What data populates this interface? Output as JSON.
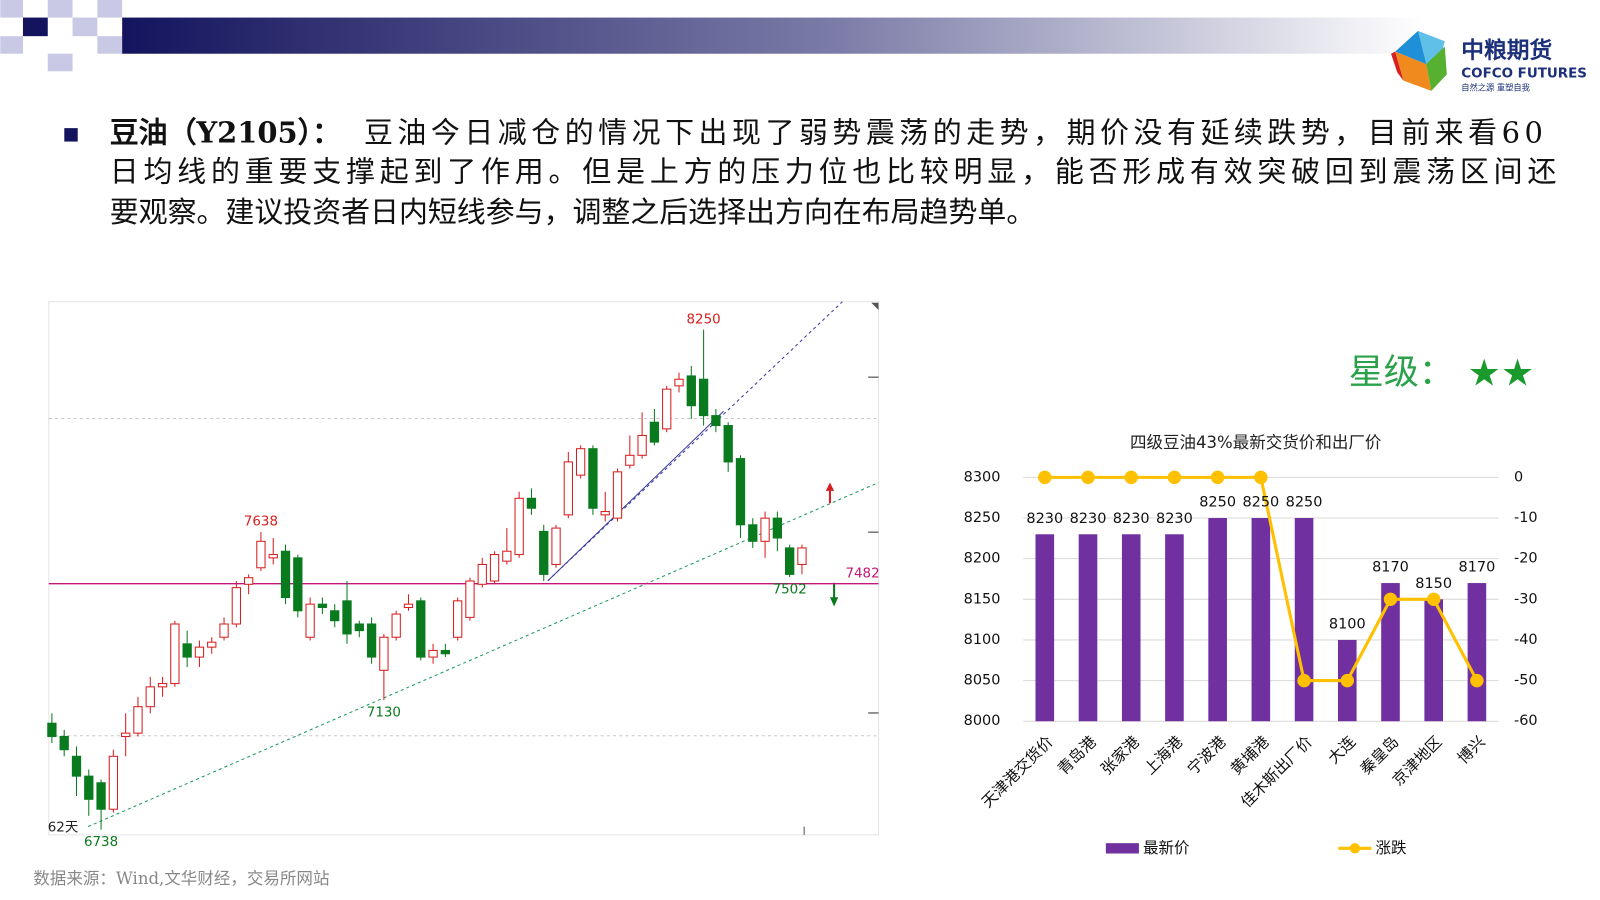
{
  "header": {
    "logo_name": "中粮期货",
    "logo_english": "COFCO FUTURES",
    "logo_slogan": "自然之源 重塑自我"
  },
  "commentary": {
    "label": "豆油（Y2105）：",
    "lines": [
      "豆油今日减仓的情况下出现了弱势震荡的走势，期价没有延续跌势，目前来看60",
      "日均线的重要支撑起到了作用。但是上方的压力位也比较明显，能否形成有效突破回到震荡区间还",
      "要观察。建议投资者日内短线参与，调整之后选择出方向在布局趋势单。"
    ]
  },
  "rating": {
    "label": "星级：",
    "stars": "★★"
  },
  "source": "数据来源：Wind,文华财经，交易所网站",
  "chart_data": [
    {
      "type": "candlestick",
      "period_label": "62天",
      "up_color": "#d81e1e",
      "down_color": "#0a7a1e",
      "support_level": 7482,
      "support_color": "#c0187a",
      "annotations": [
        8250,
        7638,
        7130,
        6738,
        7502
      ],
      "candles": [
        [
          7060,
          7090,
          7000,
          7020
        ],
        [
          7020,
          7040,
          6960,
          6980
        ],
        [
          6960,
          6990,
          6840,
          6900
        ],
        [
          6900,
          6920,
          6780,
          6830
        ],
        [
          6880,
          6890,
          6738,
          6800
        ],
        [
          6800,
          6980,
          6790,
          6960
        ],
        [
          7020,
          7090,
          6960,
          7030
        ],
        [
          7030,
          7140,
          7020,
          7110
        ],
        [
          7110,
          7200,
          7090,
          7170
        ],
        [
          7170,
          7200,
          7140,
          7180
        ],
        [
          7180,
          7370,
          7170,
          7360
        ],
        [
          7300,
          7340,
          7230,
          7260
        ],
        [
          7260,
          7310,
          7230,
          7290
        ],
        [
          7290,
          7320,
          7270,
          7305
        ],
        [
          7320,
          7380,
          7310,
          7360
        ],
        [
          7360,
          7490,
          7350,
          7470
        ],
        [
          7480,
          7510,
          7450,
          7500
        ],
        [
          7530,
          7638,
          7520,
          7610
        ],
        [
          7560,
          7620,
          7540,
          7570
        ],
        [
          7580,
          7600,
          7420,
          7440
        ],
        [
          7560,
          7570,
          7380,
          7400
        ],
        [
          7320,
          7440,
          7310,
          7420
        ],
        [
          7420,
          7440,
          7390,
          7410
        ],
        [
          7400,
          7420,
          7350,
          7370
        ],
        [
          7430,
          7490,
          7300,
          7330
        ],
        [
          7360,
          7370,
          7320,
          7340
        ],
        [
          7360,
          7380,
          7240,
          7260
        ],
        [
          7220,
          7330,
          7130,
          7320
        ],
        [
          7320,
          7400,
          7310,
          7390
        ],
        [
          7410,
          7450,
          7400,
          7420
        ],
        [
          7430,
          7440,
          7250,
          7260
        ],
        [
          7260,
          7300,
          7240,
          7280
        ],
        [
          7280,
          7300,
          7260,
          7270
        ],
        [
          7320,
          7440,
          7310,
          7430
        ],
        [
          7380,
          7500,
          7370,
          7490
        ],
        [
          7480,
          7560,
          7470,
          7540
        ],
        [
          7490,
          7580,
          7480,
          7570
        ],
        [
          7550,
          7650,
          7540,
          7580
        ],
        [
          7570,
          7760,
          7560,
          7740
        ],
        [
          7740,
          7770,
          7690,
          7710
        ],
        [
          7640,
          7660,
          7490,
          7510
        ],
        [
          7540,
          7660,
          7530,
          7650
        ],
        [
          7690,
          7880,
          7680,
          7850
        ],
        [
          7810,
          7900,
          7800,
          7890
        ],
        [
          7890,
          7900,
          7690,
          7710
        ],
        [
          7690,
          7760,
          7670,
          7700
        ],
        [
          7680,
          7830,
          7670,
          7820
        ],
        [
          7840,
          7930,
          7830,
          7870
        ],
        [
          7870,
          8000,
          7860,
          7930
        ],
        [
          7970,
          8010,
          7900,
          7910
        ],
        [
          7950,
          8080,
          7940,
          8070
        ],
        [
          8080,
          8120,
          8060,
          8100
        ],
        [
          8110,
          8140,
          7980,
          8020
        ],
        [
          8100,
          8250,
          7960,
          7990
        ],
        [
          7990,
          8010,
          7940,
          7960
        ],
        [
          7960,
          7970,
          7820,
          7850
        ],
        [
          7860,
          7870,
          7620,
          7660
        ],
        [
          7660,
          7680,
          7590,
          7610
        ],
        [
          7610,
          7700,
          7560,
          7680
        ],
        [
          7680,
          7700,
          7580,
          7620
        ],
        [
          7590,
          7600,
          7502,
          7510
        ],
        [
          7540,
          7600,
          7510,
          7590
        ]
      ]
    },
    {
      "type": "bar",
      "title": "四级豆油43%最新交货价和出厂价",
      "categories": [
        "天津港交货价",
        "青岛港",
        "张家港",
        "上海港",
        "宁波港",
        "黄埔港",
        "佳木斯出厂价",
        "大连",
        "秦皇岛",
        "京津地区",
        "博兴"
      ],
      "series": [
        {
          "name": "最新价",
          "color": "#7030a0",
          "values": [
            8230,
            8230,
            8230,
            8230,
            8250,
            8250,
            8250,
            8100,
            8170,
            8150,
            8170
          ]
        },
        {
          "name": "涨跌",
          "color": "#ffc000",
          "type": "line",
          "axis": "y2",
          "values": [
            0,
            0,
            0,
            0,
            0,
            0,
            -50,
            -50,
            -30,
            -30,
            -50
          ]
        }
      ],
      "ylim": [
        8000,
        8300
      ],
      "yticks": [
        8000,
        8050,
        8100,
        8150,
        8200,
        8250,
        8300
      ],
      "y2lim": [
        -60,
        0
      ],
      "y2ticks": [
        -60,
        -50,
        -40,
        -30,
        -20,
        -10,
        0
      ],
      "grid": true,
      "legend": "bottom"
    }
  ]
}
